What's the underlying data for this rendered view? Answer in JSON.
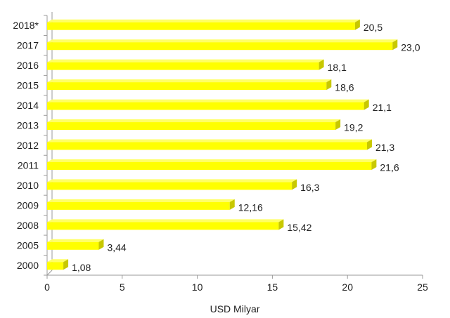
{
  "chart_data": {
    "type": "bar",
    "orientation": "horizontal",
    "categories": [
      "2018*",
      "2017",
      "2016",
      "2015",
      "2014",
      "2013",
      "2012",
      "2011",
      "2010",
      "2009",
      "2008",
      "2005",
      "2000"
    ],
    "values": [
      20.5,
      23.0,
      18.1,
      18.6,
      21.1,
      19.2,
      21.3,
      21.6,
      16.3,
      12.16,
      15.42,
      3.44,
      1.08
    ],
    "value_labels": [
      "20,5",
      "23,0",
      "18,1",
      "18,6",
      "21,1",
      "19,2",
      "21,3",
      "21,6",
      "16,3",
      "12,16",
      "15,42",
      "3,44",
      "1,08"
    ],
    "title": "",
    "xlabel": "USD Milyar",
    "ylabel": "",
    "xlim": [
      0,
      25
    ],
    "xticks": [
      "0",
      "5",
      "10",
      "15",
      "20",
      "25"
    ],
    "xtick_values": [
      0,
      5,
      10,
      15,
      20,
      25
    ],
    "grid": false,
    "legend": "none",
    "bar_color": "#ffff00",
    "bar_shade_color": "#c8c800"
  }
}
